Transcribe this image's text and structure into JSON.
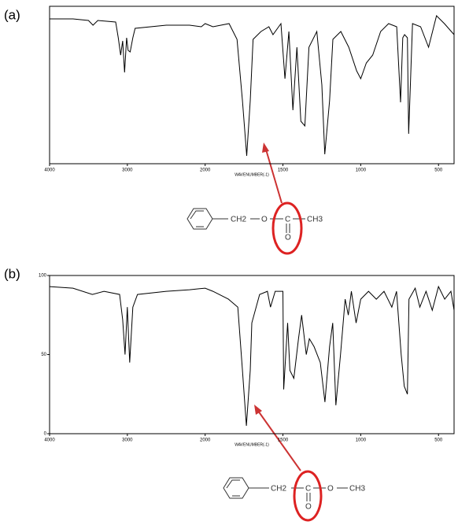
{
  "chart_data": [
    {
      "type": "line",
      "panel_label": "(a)",
      "x_label": "WAVENUMBER(-1)",
      "xlim": [
        4000,
        400
      ],
      "x_scale_change_at": 2000,
      "x_scale_factor": 2,
      "xticks": [
        4000,
        3000,
        2000,
        1500,
        1000,
        500
      ],
      "ylim": [
        0,
        100
      ],
      "color": "#000000",
      "series": [
        {
          "name": "spectrum",
          "color": "#000000",
          "x": [
            4000,
            3700,
            3500,
            3442,
            3380,
            3150,
            3117,
            3086,
            3060,
            3036,
            3010,
            2990,
            2964,
            2930,
            2900,
            2500,
            2200,
            2050,
            2000,
            1950,
            1846,
            1795,
            1760,
            1733,
            1710,
            1692,
            1641,
            1590,
            1564,
            1513,
            1487,
            1462,
            1436,
            1410,
            1385,
            1359,
            1333,
            1282,
            1250,
            1231,
            1200,
            1179,
            1128,
            1077,
            1026,
            1000,
            964,
            923,
            872,
            821,
            769,
            744,
            730,
            718,
            700,
            692,
            667,
            615,
            564,
            513,
            462,
            400
          ],
          "values": [
            92,
            92,
            91,
            88,
            91,
            90,
            80,
            69,
            78,
            58,
            80,
            72,
            71,
            80,
            86,
            88,
            88,
            87,
            89,
            87,
            89,
            79,
            40,
            5,
            40,
            79,
            84,
            87,
            82,
            89,
            54,
            84,
            34,
            74,
            27,
            24,
            74,
            84,
            50,
            6,
            40,
            79,
            84,
            74,
            59,
            54,
            64,
            69,
            84,
            89,
            87,
            39,
            80,
            82,
            80,
            19,
            89,
            87,
            74,
            94,
            89,
            82
          ]
        }
      ]
    },
    {
      "type": "line",
      "panel_label": "(b)",
      "x_label": "WAVENUMBER(-1)",
      "xlim": [
        4000,
        400
      ],
      "x_scale_change_at": 2000,
      "x_scale_factor": 2,
      "xticks": [
        4000,
        3000,
        2000,
        1500,
        1000,
        500
      ],
      "ylim": [
        0,
        100
      ],
      "yticks": [
        0,
        50,
        100
      ],
      "color": "#000000",
      "series": [
        {
          "name": "spectrum",
          "color": "#000000",
          "x": [
            4000,
            3700,
            3450,
            3300,
            3100,
            3060,
            3030,
            3000,
            2970,
            2930,
            2870,
            2500,
            2200,
            2000,
            1950,
            1850,
            1790,
            1760,
            1735,
            1710,
            1700,
            1650,
            1600,
            1580,
            1550,
            1500,
            1495,
            1470,
            1455,
            1430,
            1400,
            1380,
            1350,
            1330,
            1300,
            1260,
            1230,
            1200,
            1180,
            1160,
            1130,
            1100,
            1080,
            1060,
            1030,
            1000,
            950,
            900,
            850,
            800,
            770,
            740,
            720,
            700,
            690,
            650,
            620,
            580,
            540,
            500,
            460,
            420,
            400
          ],
          "values": [
            93,
            92,
            88,
            90,
            88,
            72,
            50,
            80,
            45,
            80,
            88,
            90,
            91,
            92,
            90,
            85,
            80,
            40,
            5,
            40,
            70,
            88,
            90,
            80,
            90,
            90,
            28,
            70,
            40,
            35,
            60,
            75,
            50,
            60,
            55,
            45,
            20,
            55,
            70,
            18,
            50,
            85,
            75,
            90,
            70,
            85,
            90,
            85,
            90,
            80,
            90,
            50,
            30,
            25,
            85,
            92,
            80,
            90,
            78,
            93,
            85,
            90,
            78
          ]
        }
      ]
    }
  ],
  "structures": [
    {
      "groups": [
        "CH2",
        "O",
        "C",
        "CH3"
      ],
      "carbonyl_o": "O"
    },
    {
      "groups": [
        "CH2",
        "C",
        "O",
        "CH3"
      ],
      "carbonyl_o": "O"
    }
  ]
}
